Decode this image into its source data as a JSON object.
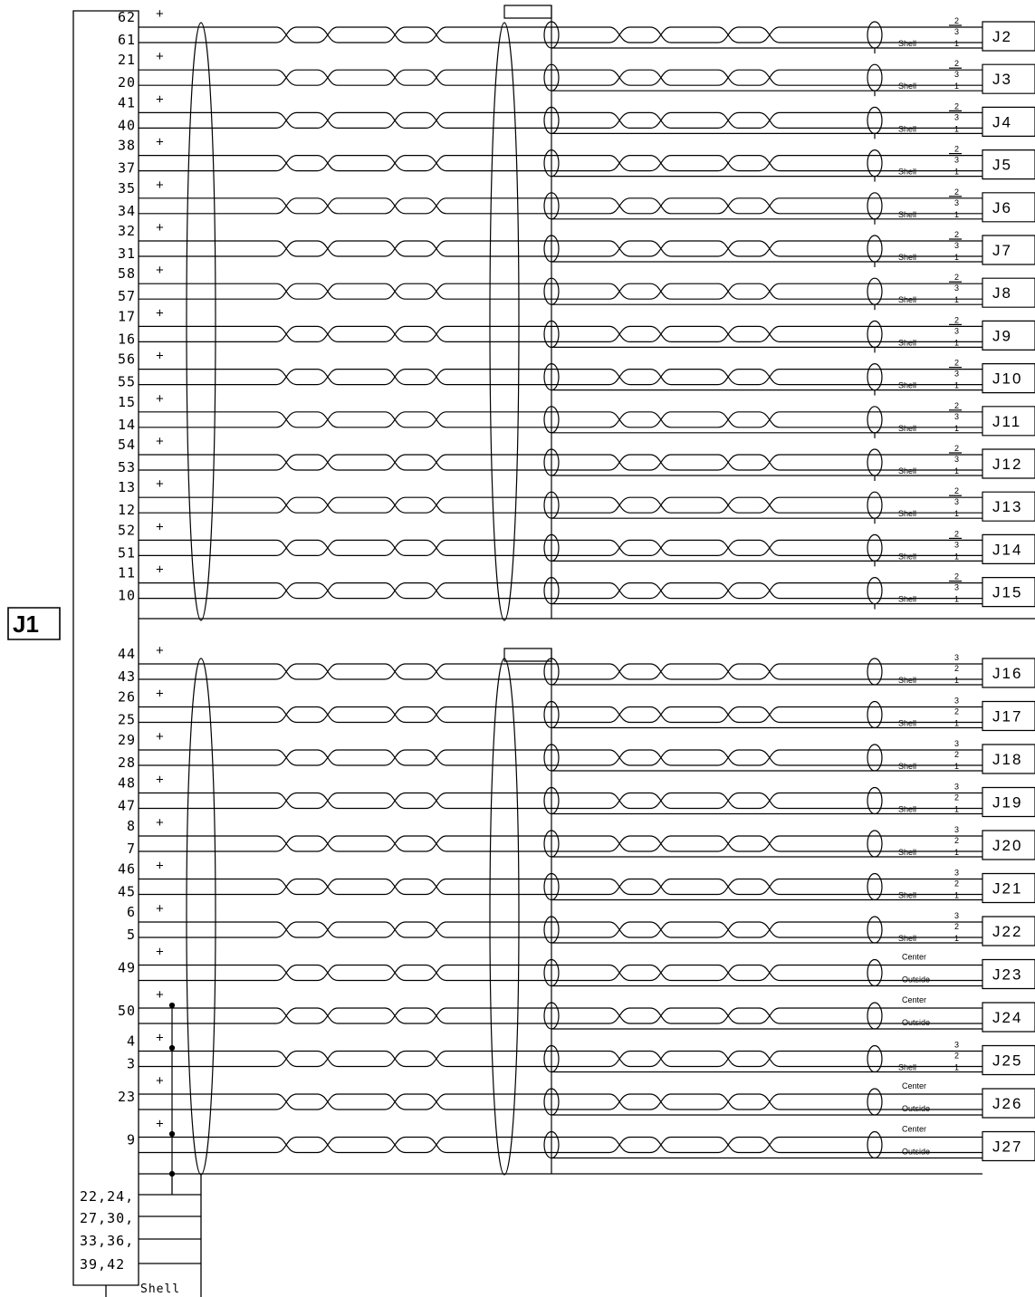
{
  "main_connector": {
    "label": "J1"
  },
  "ground": {
    "pin_lines": [
      "22,24,",
      "27,30,",
      "33,36,",
      "39,42"
    ],
    "shell_label": "Shell"
  },
  "marks": {
    "plus": "+",
    "shell": "Shell",
    "center": "Center",
    "outside": "Outside"
  },
  "group1": [
    {
      "pins": [
        "62",
        "61"
      ],
      "connector": "J2",
      "shield_pins": [
        "2",
        "3",
        "1"
      ]
    },
    {
      "pins": [
        "21",
        "20"
      ],
      "connector": "J3",
      "shield_pins": [
        "2",
        "3",
        "1"
      ]
    },
    {
      "pins": [
        "41",
        "40"
      ],
      "connector": "J4",
      "shield_pins": [
        "2",
        "3",
        "1"
      ]
    },
    {
      "pins": [
        "38",
        "37"
      ],
      "connector": "J5",
      "shield_pins": [
        "2",
        "3",
        "1"
      ]
    },
    {
      "pins": [
        "35",
        "34"
      ],
      "connector": "J6",
      "shield_pins": [
        "2",
        "3",
        "1"
      ]
    },
    {
      "pins": [
        "32",
        "31"
      ],
      "connector": "J7",
      "shield_pins": [
        "2",
        "3",
        "1"
      ]
    },
    {
      "pins": [
        "58",
        "57"
      ],
      "connector": "J8",
      "shield_pins": [
        "2",
        "3",
        "1"
      ]
    },
    {
      "pins": [
        "17",
        "16"
      ],
      "connector": "J9",
      "shield_pins": [
        "2",
        "3",
        "1"
      ]
    },
    {
      "pins": [
        "56",
        "55"
      ],
      "connector": "J10",
      "shield_pins": [
        "2",
        "3",
        "1"
      ]
    },
    {
      "pins": [
        "15",
        "14"
      ],
      "connector": "J11",
      "shield_pins": [
        "2",
        "3",
        "1"
      ]
    },
    {
      "pins": [
        "54",
        "53"
      ],
      "connector": "J12",
      "shield_pins": [
        "2",
        "3",
        "1"
      ]
    },
    {
      "pins": [
        "13",
        "12"
      ],
      "connector": "J13",
      "shield_pins": [
        "2",
        "3",
        "1"
      ]
    },
    {
      "pins": [
        "52",
        "51"
      ],
      "connector": "J14",
      "shield_pins": [
        "2",
        "3",
        "1"
      ]
    },
    {
      "pins": [
        "11",
        "10"
      ],
      "connector": "J15",
      "shield_pins": [
        "2",
        "3",
        "1"
      ]
    }
  ],
  "group2": [
    {
      "pins": [
        "44",
        "43"
      ],
      "connector": "J16",
      "kind": "triax",
      "shield_pins": [
        "3",
        "2",
        "1"
      ]
    },
    {
      "pins": [
        "26",
        "25"
      ],
      "connector": "J17",
      "kind": "triax",
      "shield_pins": [
        "3",
        "2",
        "1"
      ]
    },
    {
      "pins": [
        "29",
        "28"
      ],
      "connector": "J18",
      "kind": "triax",
      "shield_pins": [
        "3",
        "2",
        "1"
      ]
    },
    {
      "pins": [
        "48",
        "47"
      ],
      "connector": "J19",
      "kind": "triax",
      "shield_pins": [
        "3",
        "2",
        "1"
      ]
    },
    {
      "pins": [
        "8",
        "7"
      ],
      "connector": "J20",
      "kind": "triax",
      "shield_pins": [
        "3",
        "2",
        "1"
      ]
    },
    {
      "pins": [
        "46",
        "45"
      ],
      "connector": "J21",
      "kind": "triax",
      "shield_pins": [
        "3",
        "2",
        "1"
      ]
    },
    {
      "pins": [
        "6",
        "5"
      ],
      "connector": "J22",
      "kind": "triax",
      "shield_pins": [
        "3",
        "2",
        "1"
      ]
    },
    {
      "pins": [
        "49"
      ],
      "connector": "J23",
      "kind": "coax"
    },
    {
      "pins": [
        "50"
      ],
      "connector": "J24",
      "kind": "coax"
    },
    {
      "pins": [
        "4",
        "3"
      ],
      "connector": "J25",
      "kind": "triax",
      "shield_pins": [
        "3",
        "2",
        "1"
      ]
    },
    {
      "pins": [
        "23"
      ],
      "connector": "J26",
      "kind": "coax"
    },
    {
      "pins": [
        "9"
      ],
      "connector": "J27",
      "kind": "coax"
    }
  ]
}
